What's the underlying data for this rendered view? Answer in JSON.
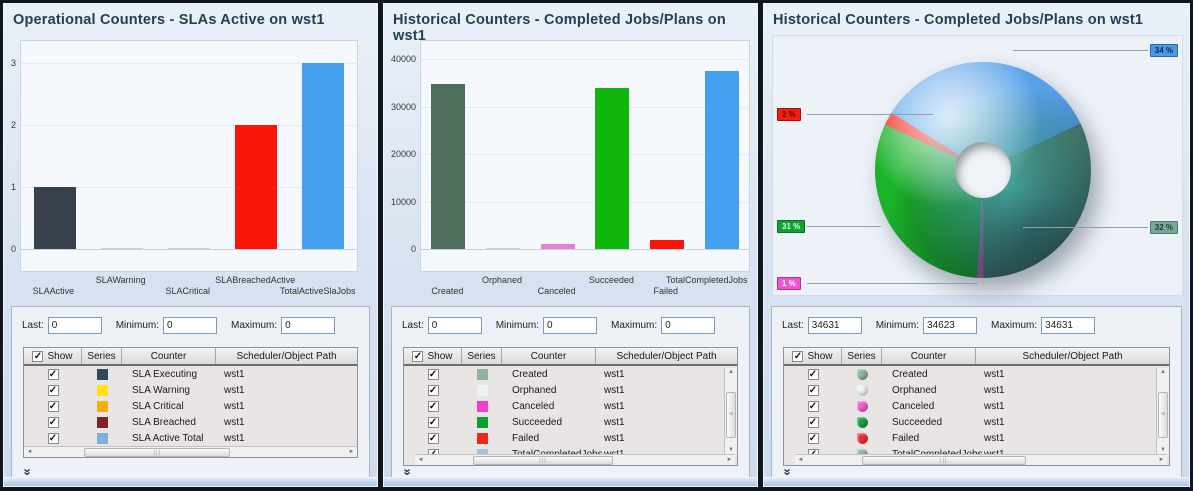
{
  "panels": [
    {
      "title": "Operational Counters - SLAs Active on wst1",
      "fields": {
        "last_label": "Last:",
        "last": "0",
        "min_label": "Minimum:",
        "min": "0",
        "max_label": "Maximum:",
        "max": "0"
      },
      "table": {
        "headers": [
          "Show",
          "Series",
          "Counter",
          "Scheduler/Object Path"
        ],
        "swatch_shape": "square",
        "vscroll": false,
        "rows": [
          {
            "checked": true,
            "color": "#2d4a5c",
            "counter": "SLA Executing",
            "path": "wst1"
          },
          {
            "checked": true,
            "color": "#ffe11a",
            "counter": "SLA Warning",
            "path": "wst1"
          },
          {
            "checked": true,
            "color": "#f5af0f",
            "counter": "SLA Critical",
            "path": "wst1"
          },
          {
            "checked": true,
            "color": "#7a2525",
            "counter": "SLA Breached",
            "path": "wst1"
          },
          {
            "checked": true,
            "color": "#7fb0d8",
            "counter": "SLA Active Total",
            "path": "wst1"
          }
        ],
        "partial_row": null
      }
    },
    {
      "title": "Historical Counters - Completed Jobs/Plans on wst1",
      "fields": {
        "last_label": "Last:",
        "last": "0",
        "min_label": "Minimum:",
        "min": "0",
        "max_label": "Maximum:",
        "max": "0"
      },
      "table": {
        "headers": [
          "Show",
          "Series",
          "Counter",
          "Scheduler/Object Path"
        ],
        "swatch_shape": "square",
        "vscroll": true,
        "rows": [
          {
            "checked": true,
            "color": "#8fb5a0",
            "counter": "Created",
            "path": "wst1"
          },
          {
            "checked": true,
            "color": "#eef4f2",
            "counter": "Orphaned",
            "path": "wst1"
          },
          {
            "checked": true,
            "color": "#f03fc8",
            "counter": "Canceled",
            "path": "wst1"
          },
          {
            "checked": true,
            "color": "#0d9f27",
            "counter": "Succeeded",
            "path": "wst1"
          },
          {
            "checked": true,
            "color": "#f02718",
            "counter": "Failed",
            "path": "wst1"
          }
        ],
        "partial_row": {
          "checked": true,
          "color": "#9fc4e8",
          "counter": "TotalCompletedJobs",
          "path": "wst1"
        }
      }
    },
    {
      "title": "Historical Counters - Completed Jobs/Plans on wst1",
      "fields": {
        "last_label": "Last:",
        "last": "34631",
        "min_label": "Minimum:",
        "min": "34623",
        "max_label": "Maximum:",
        "max": "34631"
      },
      "table": {
        "headers": [
          "Show",
          "Series",
          "Counter",
          "Scheduler/Object Path"
        ],
        "swatch_shape": "pie",
        "vscroll": true,
        "rows": [
          {
            "checked": true,
            "color": "#8fb5a0",
            "counter": "Created",
            "path": "wst1"
          },
          {
            "checked": true,
            "color": "#eef4f2",
            "counter": "Orphaned",
            "path": "wst1"
          },
          {
            "checked": true,
            "color": "#f05fce",
            "counter": "Canceled",
            "path": "wst1"
          },
          {
            "checked": true,
            "color": "#1a9f3c",
            "counter": "Succeeded",
            "path": "wst1"
          },
          {
            "checked": true,
            "color": "#f03030",
            "counter": "Failed",
            "path": "wst1"
          }
        ],
        "partial_row": {
          "checked": true,
          "color": "#8fb5a0",
          "counter": "TotalCompletedJobs",
          "path": "wst1"
        }
      }
    }
  ],
  "chart_data": [
    {
      "type": "bar",
      "title": "Operational Counters - SLAs Active on wst1",
      "categories": [
        "SLAActive",
        "SLAWarning",
        "SLACritical",
        "SLABreachedActive",
        "TotalActiveSlaJobs"
      ],
      "values": [
        1,
        0,
        0,
        2,
        3
      ],
      "colors": [
        "#37414b",
        "#c9d3da",
        "#c9d3da",
        "#fb1507",
        "#449fee"
      ],
      "yticks": [
        0,
        1,
        2,
        3
      ],
      "ylim": [
        0,
        3.1
      ],
      "xlabel": "",
      "ylabel": "",
      "grid": true,
      "legend": "table-below"
    },
    {
      "type": "bar",
      "title": "Historical Counters - Completed Jobs/Plans on wst1",
      "categories": [
        "Created",
        "Orphaned",
        "Canceled",
        "Succeeded",
        "Failed",
        "TotalCompletedJobs"
      ],
      "values": [
        34800,
        50,
        1000,
        34000,
        1800,
        37600
      ],
      "colors": [
        "#4c6e5a",
        "#c9d3da",
        "#e77fd3",
        "#10b60c",
        "#fb1507",
        "#449fee"
      ],
      "yticks": [
        0,
        10000,
        20000,
        30000,
        40000
      ],
      "ylim": [
        0,
        40500
      ],
      "xlabel": "",
      "ylabel": "",
      "grid": true,
      "legend": "table-below"
    },
    {
      "type": "pie",
      "donut": true,
      "title": "Historical Counters - Completed Jobs/Plans on wst1",
      "start_angle": 302,
      "slices": [
        {
          "name": "TotalCompletedJobs",
          "label": "34 %",
          "value": 34,
          "color": "#58a2ea"
        },
        {
          "name": "Created",
          "label": "32 %",
          "value": 32,
          "color": "#50806f"
        },
        {
          "name": "Canceled",
          "label": "1 %",
          "value": 1,
          "color": "#e060c8"
        },
        {
          "name": "Succeeded",
          "label": "31 %",
          "value": 31,
          "color": "#1ab32a"
        },
        {
          "name": "Failed",
          "label": "2 %",
          "value": 2,
          "color": "#f22010"
        }
      ],
      "callouts": [
        {
          "text": "34 %",
          "side": "right",
          "y": 14,
          "line_to": 240,
          "bg": "#4a9ae4",
          "border": "#2a6ab4",
          "fg": "#0a2a55"
        },
        {
          "text": "2 %",
          "side": "left",
          "y": 78,
          "line_to": 160,
          "bg": "#f02010",
          "border": "#a01008",
          "fg": "#5a0000"
        },
        {
          "text": "31 %",
          "side": "left",
          "y": 190,
          "line_to": 108,
          "bg": "#12a035",
          "border": "#0a7022",
          "fg": "#d8ffe0"
        },
        {
          "text": "1 %",
          "side": "left",
          "y": 247,
          "line_to": 205,
          "bg": "#ee55cc",
          "border": "#b03098",
          "fg": "#ffffff"
        },
        {
          "text": "32 %",
          "side": "right",
          "y": 191,
          "line_to": 250,
          "bg": "#78a899",
          "border": "#4a7a6a",
          "fg": "#1a3a30"
        }
      ]
    }
  ],
  "icons": {
    "checkmark": "✓",
    "chevron_expand": "»",
    "scroll_left": "◄",
    "scroll_right": "►",
    "scroll_up": "▲",
    "scroll_down": "▼",
    "h_grip": "|||",
    "v_grip": "≡"
  },
  "shared": {
    "scheduler": "wst1"
  }
}
